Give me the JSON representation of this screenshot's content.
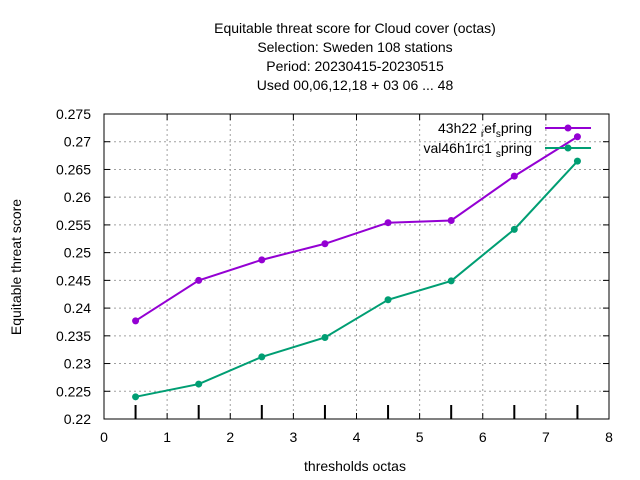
{
  "chart_data": {
    "type": "line",
    "title_lines": [
      "Equitable threat score  for Cloud cover (octas)",
      "Selection: Sweden    108 stations",
      "Period: 20230415-20230515",
      "Used  00,06,12,18 + 03 06 ... 48"
    ],
    "xlabel": "thresholds octas",
    "ylabel": "Equitable threat score",
    "xlim": [
      0,
      8
    ],
    "ylim": [
      0.22,
      0.275
    ],
    "xticks": [
      0,
      1,
      2,
      3,
      4,
      5,
      6,
      7,
      8
    ],
    "yticks": [
      0.22,
      0.225,
      0.23,
      0.235,
      0.24,
      0.245,
      0.25,
      0.255,
      0.26,
      0.265,
      0.27,
      0.275
    ],
    "grid": true,
    "legend_position": "top-right",
    "threshold_marks": [
      0.5,
      1.5,
      2.5,
      3.5,
      4.5,
      5.5,
      6.5,
      7.5
    ],
    "series": [
      {
        "name": "43h22_ref_spring",
        "legend_main": "43h22",
        "legend_parts": [
          {
            "text": "43h22 ",
            "sub": false
          },
          {
            "text": "r",
            "sub": true
          },
          {
            "text": "ef",
            "sub": false
          },
          {
            "text": "s",
            "sub": true
          },
          {
            "text": "pring",
            "sub": false
          }
        ],
        "color": "#9400d3",
        "x": [
          0.5,
          1.5,
          2.5,
          3.5,
          4.5,
          5.5,
          6.5,
          7.5
        ],
        "values": [
          0.2377,
          0.245,
          0.2487,
          0.2516,
          0.2554,
          0.2558,
          0.2638,
          0.2709
        ]
      },
      {
        "name": "val46h1rc1_spring",
        "legend_parts": [
          {
            "text": "val46h1rc1 ",
            "sub": false
          },
          {
            "text": "s",
            "sub": true
          },
          {
            "text": "pring",
            "sub": false
          }
        ],
        "color": "#009e73",
        "x": [
          0.5,
          1.5,
          2.5,
          3.5,
          4.5,
          5.5,
          6.5,
          7.5
        ],
        "values": [
          0.224,
          0.2263,
          0.2312,
          0.2347,
          0.2415,
          0.2449,
          0.2542,
          0.2665
        ]
      }
    ]
  }
}
